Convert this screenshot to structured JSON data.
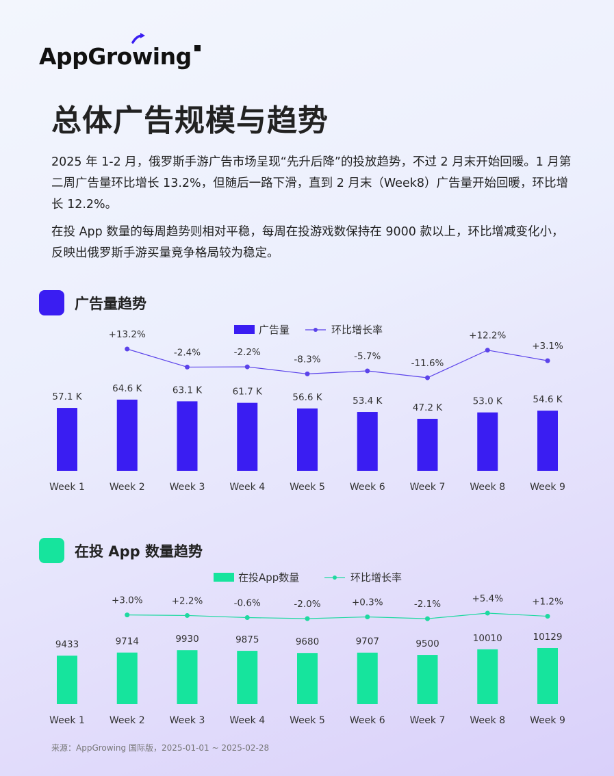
{
  "brand": {
    "name": "AppGrowing"
  },
  "page_title": "总体广告规模与趋势",
  "paragraphs": [
    "2025 年 1-2 月，俄罗斯手游广告市场呈现“先升后降”的投放趋势，不过 2 月末开始回暖。1 月第二周广告量环比增长 13.2%，但随后一路下滑，直到 2 月末（Week8）广告量开始回暖，环比增长 12.2%。",
    "在投 App 数量的每周趋势则相对平稳，每周在投游戏数保持在 9000 款以上，环比增减变化小，反映出俄罗斯手游买量竞争格局较为稳定。"
  ],
  "source": "来源：AppGrowing 国际版，2025-01-01 ~ 2025-02-28",
  "colors": {
    "ad_bar": "#3a1df2",
    "ad_line": "#5b43ea",
    "app_bar": "#16e49d",
    "app_line": "#1ed9a0"
  },
  "chart_data": [
    {
      "type": "bar",
      "title": "广告量趋势",
      "categories": [
        "Week 1",
        "Week 2",
        "Week 3",
        "Week 4",
        "Week 5",
        "Week 6",
        "Week 7",
        "Week 8",
        "Week 9"
      ],
      "series": [
        {
          "name": "广告量",
          "type": "bar",
          "values": [
            57.1,
            64.6,
            63.1,
            61.7,
            56.6,
            53.4,
            47.2,
            53.0,
            54.6
          ],
          "labels": [
            "57.1 K",
            "64.6 K",
            "63.1 K",
            "61.7 K",
            "56.6 K",
            "53.4 K",
            "47.2 K",
            "53.0 K",
            "54.6 K"
          ]
        },
        {
          "name": "环比增长率",
          "type": "line",
          "values": [
            null,
            13.2,
            -2.4,
            -2.2,
            -8.3,
            -5.7,
            -11.6,
            12.2,
            3.1
          ],
          "labels": [
            "",
            "+13.2%",
            "-2.4%",
            "-2.2%",
            "-8.3%",
            "-5.7%",
            "-11.6%",
            "+12.2%",
            "+3.1%"
          ]
        }
      ],
      "legend": "top-center",
      "grid": false
    },
    {
      "type": "bar",
      "title": "在投 App 数量趋势",
      "categories": [
        "Week 1",
        "Week 2",
        "Week 3",
        "Week 4",
        "Week 5",
        "Week 6",
        "Week 7",
        "Week 8",
        "Week 9"
      ],
      "series": [
        {
          "name": "在投App数量",
          "type": "bar",
          "values": [
            9433,
            9714,
            9930,
            9875,
            9680,
            9707,
            9500,
            10010,
            10129
          ],
          "labels": [
            "9433",
            "9714",
            "9930",
            "9875",
            "9680",
            "9707",
            "9500",
            "10010",
            "10129"
          ]
        },
        {
          "name": "环比增长率",
          "type": "line",
          "values": [
            null,
            3.0,
            2.2,
            -0.6,
            -2.0,
            0.3,
            -2.1,
            5.4,
            1.2
          ],
          "labels": [
            "",
            "+3.0%",
            "+2.2%",
            "-0.6%",
            "-2.0%",
            "+0.3%",
            "-2.1%",
            "+5.4%",
            "+1.2%"
          ]
        }
      ],
      "legend": "top-center",
      "grid": false
    }
  ]
}
